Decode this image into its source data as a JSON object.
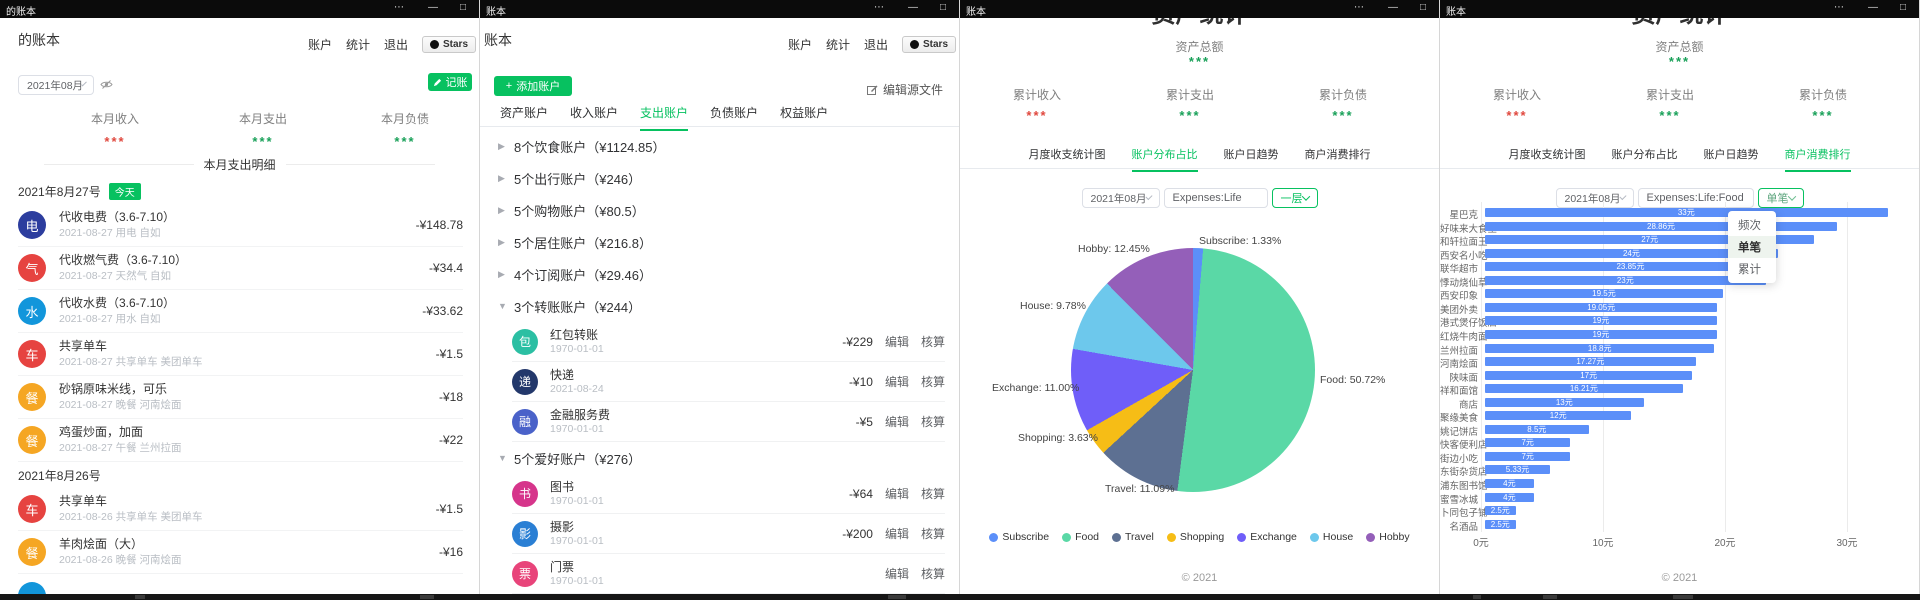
{
  "titlebar": {
    "menu_icon": "⋯",
    "minimize_icon": "—",
    "maximize_icon": "□",
    "titles": [
      "的账本",
      "账本",
      "账本",
      "账本"
    ]
  },
  "nav": {
    "accounts": "账户",
    "stats": "统计",
    "logout": "退出",
    "stars_label": "Stars"
  },
  "w1": {
    "header_title": "的账本",
    "month": "2021年08月",
    "record_button": "记账",
    "stats": [
      {
        "label": "本月收入",
        "value": "***",
        "tone": "red"
      },
      {
        "label": "本月支出",
        "value": "***",
        "tone": "grn"
      },
      {
        "label": "本月负债",
        "value": "***",
        "tone": "grn"
      }
    ],
    "section_title": "本月支出明细",
    "groups": [
      {
        "date": "2021年8月27号",
        "badge": "今天",
        "items": [
          {
            "icon": "electricity-icon",
            "glyph": "电",
            "color": "#2c3d9e",
            "title": "代收电费（3.6-7.10）",
            "sub": "2021-08-27 用电 自如",
            "amount": "-¥148.78"
          },
          {
            "icon": "gas-icon",
            "glyph": "气",
            "color": "#e64340",
            "title": "代收燃气费（3.6-7.10）",
            "sub": "2021-08-27 天然气 自如",
            "amount": "-¥34.4"
          },
          {
            "icon": "water-icon",
            "glyph": "水",
            "color": "#1296db",
            "title": "代收水费（3.6-7.10）",
            "sub": "2021-08-27 用水 自如",
            "amount": "-¥33.62"
          },
          {
            "icon": "bike-icon",
            "glyph": "车",
            "color": "#e64340",
            "title": "共享单车",
            "sub": "2021-08-27 共享单车 美团单车",
            "amount": "-¥1.5"
          },
          {
            "icon": "food-icon",
            "glyph": "餐",
            "color": "#f5a623",
            "title": "砂锅原味米线，可乐",
            "sub": "2021-08-27 晚餐 河南烩面",
            "amount": "-¥18"
          },
          {
            "icon": "food-icon",
            "glyph": "餐",
            "color": "#f5a623",
            "title": "鸡蛋炒面，加面",
            "sub": "2021-08-27 午餐 兰州拉面",
            "amount": "-¥22"
          }
        ]
      },
      {
        "date": "2021年8月26号",
        "badge": "",
        "items": [
          {
            "icon": "bike-icon",
            "glyph": "车",
            "color": "#e64340",
            "title": "共享单车",
            "sub": "2021-08-26 共享单车 美团单车",
            "amount": "-¥1.5"
          },
          {
            "icon": "food-icon",
            "glyph": "餐",
            "color": "#f5a623",
            "title": "羊肉烩面（大）",
            "sub": "2021-08-26 晚餐 河南烩面",
            "amount": "-¥16"
          },
          {
            "icon": "drink-icon",
            "glyph": "",
            "color": "#1296db",
            "title": "",
            "sub": "",
            "amount": "",
            "partial": true
          }
        ]
      }
    ]
  },
  "w2": {
    "header_title": "账本",
    "add_button": "添加账户",
    "edit_source": "编辑源文件",
    "tabs": [
      "资产账户",
      "收入账户",
      "支出账户",
      "负债账户",
      "权益账户"
    ],
    "active_tab": 2,
    "edit_link": "编辑",
    "audit_link": "核算",
    "groups": [
      {
        "caret": "▶",
        "label": "8个饮食账户（¥1124.85）",
        "children": []
      },
      {
        "caret": "▶",
        "label": "5个出行账户（¥246）",
        "children": []
      },
      {
        "caret": "▶",
        "label": "5个购物账户（¥80.5）",
        "children": []
      },
      {
        "caret": "▶",
        "label": "5个居住账户（¥216.8）",
        "children": []
      },
      {
        "caret": "▶",
        "label": "4个订阅账户（¥29.46）",
        "children": []
      },
      {
        "caret": "▼",
        "label": "3个转账账户（¥244）",
        "children": [
          {
            "icon": "red-packet-icon",
            "glyph": "包",
            "color": "#2bbfa3",
            "title": "红包转账",
            "sub": "1970-01-01",
            "amount": "-¥229"
          },
          {
            "icon": "delivery-icon",
            "glyph": "递",
            "color": "#23386b",
            "title": "快递",
            "sub": "2021-08-24",
            "amount": "-¥10"
          },
          {
            "icon": "finance-icon",
            "glyph": "融",
            "color": "#4a62c9",
            "title": "金融服务费",
            "sub": "1970-01-01",
            "amount": "-¥5"
          }
        ]
      },
      {
        "caret": "▼",
        "label": "5个爱好账户（¥276）",
        "children": [
          {
            "icon": "book-icon",
            "glyph": "书",
            "color": "#d6358b",
            "title": "图书",
            "sub": "1970-01-01",
            "amount": "-¥64"
          },
          {
            "icon": "camera-icon",
            "glyph": "影",
            "color": "#2a7fd4",
            "title": "摄影",
            "sub": "1970-01-01",
            "amount": "-¥200"
          },
          {
            "icon": "ticket-icon",
            "glyph": "票",
            "color": "#e8447a",
            "title": "门票",
            "sub": "1970-01-01",
            "amount": ""
          }
        ]
      }
    ]
  },
  "stats_page": {
    "big_title": "资产统计",
    "total_label": "资产总额",
    "total_value": "***",
    "stats": [
      {
        "label": "累计收入",
        "value": "***",
        "tone": "red"
      },
      {
        "label": "累计支出",
        "value": "***",
        "tone": "grn"
      },
      {
        "label": "累计负债",
        "value": "***",
        "tone": "grn"
      }
    ],
    "tabs": [
      "月度收支统计图",
      "账户分布占比",
      "账户日趋势",
      "商户消费排行"
    ],
    "footer": "© 2021"
  },
  "w3": {
    "active_tab": 1,
    "month": "2021年08月",
    "query": "Expenses:Life",
    "level": "一层"
  },
  "w4": {
    "active_tab": 3,
    "month": "2021年08月",
    "query": "Expenses:Life:Food",
    "mode": "单笔",
    "dropdown_options": [
      "频次",
      "单笔",
      "累计"
    ],
    "dropdown_selected": 1
  },
  "chart_data": [
    {
      "type": "pie",
      "title": "账户分布占比",
      "legend_position": "bottom",
      "label_format": "name: value%",
      "data": [
        {
          "name": "Subscribe",
          "value": "1.33",
          "color": "#5B8FF9"
        },
        {
          "name": "Food",
          "value": "50.72",
          "color": "#5AD8A6"
        },
        {
          "name": "Travel",
          "value": "11.09",
          "color": "#5D7092"
        },
        {
          "name": "Shopping",
          "value": "3.63",
          "color": "#F6BD16"
        },
        {
          "name": "Exchange",
          "value": "11.00",
          "color": "#6F5EF9"
        },
        {
          "name": "House",
          "value": "9.78",
          "color": "#6DC8EC"
        },
        {
          "name": "Hobby",
          "value": "12.45",
          "color": "#945FB9"
        }
      ]
    },
    {
      "type": "bar",
      "orientation": "horizontal",
      "title": "商户消费排行",
      "unit": "元",
      "bar_color": "#5B8FF9",
      "xlim": [
        0,
        33
      ],
      "x_ticks": [
        "0元",
        "10元",
        "20元",
        "30元"
      ],
      "categories": [
        "星巴克",
        "好味来大食堂",
        "和轩拉面王",
        "西安名小吃",
        "联华超市",
        "悸动烧仙草",
        "西安印象",
        "美团外卖",
        "港式煲仔饭店",
        "红烧牛肉面",
        "兰州拉面",
        "河南烩面",
        "陕味面",
        "祥和面馆",
        "商店",
        "聚缘美食",
        "姚记饼店",
        "快客便利店",
        "街边小吃",
        "东街杂货店",
        "浦东图书馆",
        "蜜雪冰城",
        "卜同包子铺",
        "名酒品"
      ],
      "values": [
        "33",
        "28.86",
        "27",
        "24",
        "23.85",
        "23",
        "19.5",
        "19.05",
        "19",
        "19",
        "18.8",
        "17.27",
        "17",
        "16.21",
        "13",
        "12",
        "8.5",
        "7",
        "7",
        "5.33",
        "4",
        "4",
        "2.5",
        "2.5"
      ]
    }
  ]
}
